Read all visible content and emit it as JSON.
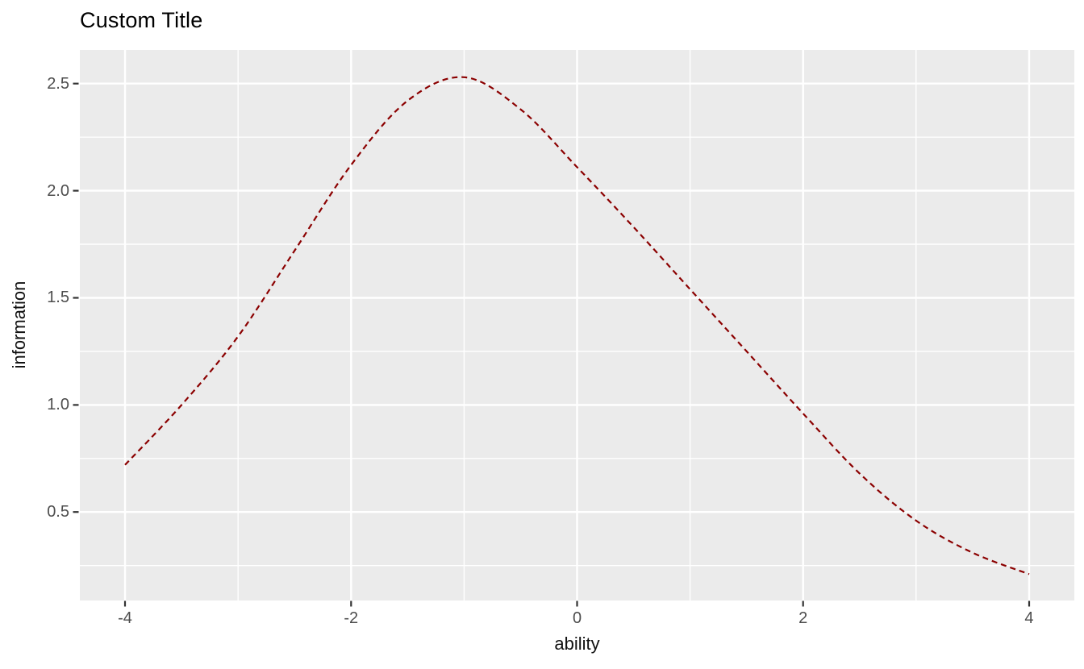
{
  "chart_data": {
    "type": "line",
    "title": "Custom Title",
    "xlabel": "ability",
    "ylabel": "information",
    "grid": "on",
    "legend": "none",
    "xlim": [
      -4.4,
      4.4
    ],
    "ylim": [
      0.087,
      2.657
    ],
    "x_ticks": [
      -4,
      -2,
      0,
      2,
      4
    ],
    "x_tick_labels": [
      "-4",
      "-2",
      "0",
      "2",
      "4"
    ],
    "y_ticks": [
      0.5,
      1.0,
      1.5,
      2.0,
      2.5
    ],
    "y_tick_labels": [
      "0.5",
      "1.0",
      "1.5",
      "2.0",
      "2.5"
    ],
    "x_minor": [
      -3,
      -1,
      1,
      3
    ],
    "y_minor": [
      0.25,
      0.75,
      1.25,
      1.75,
      2.25
    ],
    "series": [
      {
        "x": [
          -4.0,
          -3.5,
          -3.0,
          -2.5,
          -2.0,
          -1.5,
          -1.0,
          -0.5,
          0.0,
          0.5,
          1.0,
          1.5,
          2.0,
          2.5,
          3.0,
          3.5,
          4.0
        ],
        "y": [
          0.72,
          1.0,
          1.32,
          1.72,
          2.12,
          2.42,
          2.53,
          2.38,
          2.11,
          1.83,
          1.54,
          1.25,
          0.96,
          0.68,
          0.46,
          0.31,
          0.21
        ],
        "color": "#8B0000",
        "line_style": "dashed",
        "line_width": 2.2,
        "dash_pattern": "7 5"
      }
    ],
    "colors": {
      "panel_background": "#EBEBEB",
      "grid": "#FFFFFF",
      "tick_mark": "#333333",
      "tick_label": "#4D4D4D",
      "axis_title": "#111111",
      "title": "#000000"
    }
  }
}
